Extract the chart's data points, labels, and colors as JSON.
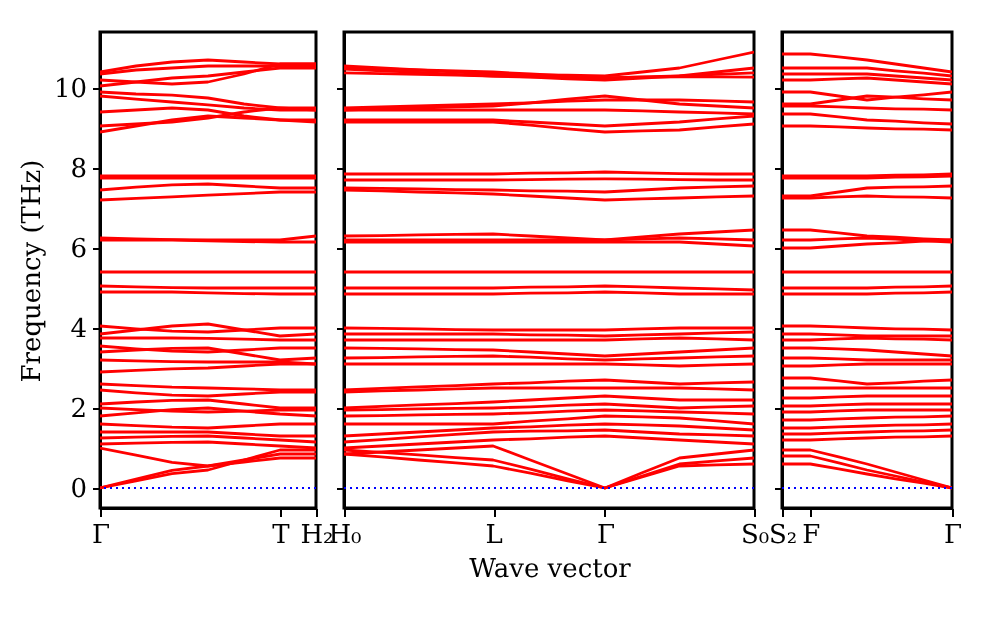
{
  "chart_data": [
    {
      "type": "line",
      "ylabel": "Frequency (THz)",
      "categories": [
        "Γ",
        null,
        null,
        null,
        null,
        "T",
        "H₂"
      ],
      "ylim": [
        -0.5,
        11.4
      ],
      "yticks": [
        0,
        2,
        4,
        6,
        8,
        10
      ],
      "ref_lines": [
        {
          "axis": "y",
          "value": 0,
          "color": "#0000ff",
          "line_style": "dotted"
        }
      ],
      "series": [
        {
          "color": "#ff0000",
          "values": [
            10.4,
            10.55,
            10.65,
            10.7,
            10.65,
            10.6,
            10.6
          ]
        },
        {
          "color": "#ff0000",
          "values": [
            10.35,
            10.45,
            10.5,
            10.55,
            10.55,
            10.55,
            10.55
          ]
        },
        {
          "color": "#ff0000",
          "values": [
            10.2,
            10.15,
            10.1,
            10.15,
            10.35,
            10.6,
            10.6
          ]
        },
        {
          "color": "#ff0000",
          "values": [
            10.05,
            10.15,
            10.25,
            10.3,
            10.4,
            10.5,
            10.5
          ]
        },
        {
          "color": "#ff0000",
          "values": [
            9.9,
            9.85,
            9.82,
            9.75,
            9.6,
            9.5,
            9.5
          ]
        },
        {
          "color": "#ff0000",
          "values": [
            9.8,
            9.72,
            9.65,
            9.58,
            9.5,
            9.45,
            9.45
          ]
        },
        {
          "color": "#ff0000",
          "values": [
            9.4,
            9.45,
            9.5,
            9.45,
            9.3,
            9.2,
            9.2
          ]
        },
        {
          "color": "#ff0000",
          "values": [
            9.05,
            9.1,
            9.15,
            9.25,
            9.4,
            9.5,
            9.45
          ]
        },
        {
          "color": "#ff0000",
          "values": [
            8.9,
            9.05,
            9.2,
            9.3,
            9.25,
            9.2,
            9.15
          ]
        },
        {
          "color": "#ff0000",
          "values": [
            7.8,
            7.8,
            7.8,
            7.8,
            7.8,
            7.8,
            7.8
          ]
        },
        {
          "color": "#ff0000",
          "values": [
            7.75,
            7.75,
            7.75,
            7.75,
            7.75,
            7.75,
            7.75
          ]
        },
        {
          "color": "#ff0000",
          "values": [
            7.45,
            7.52,
            7.58,
            7.6,
            7.55,
            7.5,
            7.5
          ]
        },
        {
          "color": "#ff0000",
          "values": [
            7.2,
            7.24,
            7.28,
            7.32,
            7.36,
            7.4,
            7.4
          ]
        },
        {
          "color": "#ff0000",
          "values": [
            6.25,
            6.23,
            6.21,
            6.2,
            6.2,
            6.2,
            6.3
          ]
        },
        {
          "color": "#ff0000",
          "values": [
            6.2,
            6.2,
            6.2,
            6.18,
            6.16,
            6.15,
            6.15
          ]
        },
        {
          "color": "#ff0000",
          "values": [
            5.4,
            5.4,
            5.4,
            5.4,
            5.4,
            5.4,
            5.4
          ]
        },
        {
          "color": "#ff0000",
          "values": [
            5.05,
            5.03,
            5.01,
            5.0,
            5.0,
            5.0,
            5.0
          ]
        },
        {
          "color": "#ff0000",
          "values": [
            4.9,
            4.9,
            4.9,
            4.88,
            4.86,
            4.85,
            4.85
          ]
        },
        {
          "color": "#ff0000",
          "values": [
            4.05,
            3.98,
            3.92,
            3.9,
            3.95,
            4.0,
            4.0
          ]
        },
        {
          "color": "#ff0000",
          "values": [
            3.85,
            3.95,
            4.05,
            4.1,
            3.95,
            3.8,
            3.85
          ]
        },
        {
          "color": "#ff0000",
          "values": [
            3.75,
            3.75,
            3.75,
            3.74,
            3.72,
            3.7,
            3.7
          ]
        },
        {
          "color": "#ff0000",
          "values": [
            3.55,
            3.48,
            3.42,
            3.4,
            3.45,
            3.5,
            3.5
          ]
        },
        {
          "color": "#ff0000",
          "values": [
            3.4,
            3.45,
            3.49,
            3.5,
            3.35,
            3.2,
            3.25
          ]
        },
        {
          "color": "#ff0000",
          "values": [
            3.2,
            3.18,
            3.16,
            3.15,
            3.15,
            3.15,
            3.1
          ]
        },
        {
          "color": "#ff0000",
          "values": [
            2.9,
            2.94,
            2.98,
            3.0,
            3.05,
            3.1,
            3.1
          ]
        },
        {
          "color": "#ff0000",
          "values": [
            2.6,
            2.56,
            2.52,
            2.5,
            2.48,
            2.45,
            2.45
          ]
        },
        {
          "color": "#ff0000",
          "values": [
            2.45,
            2.38,
            2.32,
            2.3,
            2.35,
            2.4,
            2.4
          ]
        },
        {
          "color": "#ff0000",
          "values": [
            2.1,
            2.15,
            2.19,
            2.2,
            2.1,
            2.0,
            2.0
          ]
        },
        {
          "color": "#ff0000",
          "values": [
            2.0,
            1.96,
            1.92,
            1.9,
            1.92,
            1.95,
            1.95
          ]
        },
        {
          "color": "#ff0000",
          "values": [
            1.8,
            1.88,
            1.96,
            2.0,
            1.92,
            1.85,
            1.8
          ]
        },
        {
          "color": "#ff0000",
          "values": [
            1.6,
            1.56,
            1.52,
            1.5,
            1.55,
            1.6,
            1.6
          ]
        },
        {
          "color": "#ff0000",
          "values": [
            1.4,
            1.4,
            1.4,
            1.4,
            1.35,
            1.3,
            1.3
          ]
        },
        {
          "color": "#ff0000",
          "values": [
            1.25,
            1.27,
            1.29,
            1.3,
            1.25,
            1.2,
            1.15
          ]
        },
        {
          "color": "#ff0000",
          "values": [
            1.1,
            1.12,
            1.14,
            1.15,
            1.1,
            1.05,
            1.0
          ]
        },
        {
          "color": "#ff0000",
          "values": [
            1.0,
            0.82,
            0.64,
            0.55,
            0.65,
            0.75,
            0.75
          ]
        },
        {
          "color": "#ff0000",
          "values": [
            0,
            0.18,
            0.36,
            0.45,
            0.7,
            0.95,
            0.95
          ]
        },
        {
          "color": "#ff0000",
          "values": [
            0,
            0.22,
            0.44,
            0.55,
            0.7,
            0.85,
            0.85
          ]
        }
      ]
    },
    {
      "type": "line",
      "xlabel": "Wave vector",
      "tick_labels": "x",
      "categories": [
        "H₀",
        null,
        null,
        null,
        "L",
        null,
        null,
        "Γ",
        null,
        null,
        null,
        "S₀"
      ],
      "ylim": [
        -0.5,
        11.4
      ],
      "yticks": [
        0,
        2,
        4,
        6,
        8,
        10
      ],
      "ref_lines": [
        {
          "axis": "y",
          "value": 0,
          "color": "#0000ff",
          "line_style": "dotted"
        }
      ],
      "series": [
        {
          "color": "#ff0000",
          "values": [
            10.55,
            10.5,
            10.45,
            10.4,
            10.35,
            10.33,
            10.32,
            10.3,
            10.4,
            10.5,
            10.7,
            10.9
          ]
        },
        {
          "color": "#ff0000",
          "values": [
            10.5,
            10.48,
            10.45,
            10.43,
            10.4,
            10.35,
            10.3,
            10.25,
            10.28,
            10.3,
            10.4,
            10.5
          ]
        },
        {
          "color": "#ff0000",
          "values": [
            10.47,
            10.43,
            10.39,
            10.34,
            10.3,
            10.27,
            10.23,
            10.2,
            10.25,
            10.3,
            10.34,
            10.38
          ]
        },
        {
          "color": "#ff0000",
          "values": [
            10.38,
            10.36,
            10.34,
            10.32,
            10.3,
            10.28,
            10.27,
            10.25,
            10.27,
            10.28,
            10.28,
            10.27
          ]
        },
        {
          "color": "#ff0000",
          "values": [
            9.5,
            9.53,
            9.55,
            9.58,
            9.6,
            9.63,
            9.67,
            9.7,
            9.7,
            9.7,
            9.68,
            9.65
          ]
        },
        {
          "color": "#ff0000",
          "values": [
            9.45,
            9.48,
            9.5,
            9.53,
            9.55,
            9.63,
            9.72,
            9.8,
            9.7,
            9.6,
            9.55,
            9.5
          ]
        },
        {
          "color": "#ff0000",
          "values": [
            9.45,
            9.45,
            9.45,
            9.45,
            9.45,
            9.45,
            9.45,
            9.45,
            9.43,
            9.4,
            9.38,
            9.35
          ]
        },
        {
          "color": "#ff0000",
          "values": [
            9.2,
            9.2,
            9.2,
            9.2,
            9.2,
            9.15,
            9.1,
            9.05,
            9.1,
            9.15,
            9.23,
            9.3
          ]
        },
        {
          "color": "#ff0000",
          "values": [
            9.15,
            9.15,
            9.15,
            9.15,
            9.15,
            9.07,
            8.98,
            8.9,
            8.93,
            8.95,
            9.03,
            9.1
          ]
        },
        {
          "color": "#ff0000",
          "values": [
            7.85,
            7.85,
            7.85,
            7.85,
            7.85,
            7.87,
            7.88,
            7.9,
            7.88,
            7.86,
            7.85,
            7.85
          ]
        },
        {
          "color": "#ff0000",
          "values": [
            7.7,
            7.7,
            7.7,
            7.7,
            7.7,
            7.71,
            7.72,
            7.73,
            7.72,
            7.71,
            7.7,
            7.7
          ]
        },
        {
          "color": "#ff0000",
          "values": [
            7.5,
            7.49,
            7.48,
            7.46,
            7.45,
            7.43,
            7.42,
            7.4,
            7.45,
            7.5,
            7.53,
            7.55
          ]
        },
        {
          "color": "#ff0000",
          "values": [
            7.45,
            7.43,
            7.4,
            7.38,
            7.35,
            7.3,
            7.25,
            7.2,
            7.23,
            7.25,
            7.28,
            7.3
          ]
        },
        {
          "color": "#ff0000",
          "values": [
            6.3,
            6.31,
            6.33,
            6.34,
            6.35,
            6.3,
            6.25,
            6.2,
            6.28,
            6.35,
            6.4,
            6.45
          ]
        },
        {
          "color": "#ff0000",
          "values": [
            6.2,
            6.2,
            6.2,
            6.2,
            6.2,
            6.2,
            6.2,
            6.2,
            6.23,
            6.25,
            6.23,
            6.2
          ]
        },
        {
          "color": "#ff0000",
          "values": [
            6.15,
            6.15,
            6.15,
            6.15,
            6.15,
            6.15,
            6.15,
            6.15,
            6.15,
            6.15,
            6.1,
            6.05
          ]
        },
        {
          "color": "#ff0000",
          "values": [
            5.4,
            5.4,
            5.4,
            5.4,
            5.4,
            5.4,
            5.4,
            5.4,
            5.4,
            5.4,
            5.4,
            5.4
          ]
        },
        {
          "color": "#ff0000",
          "values": [
            5.0,
            5.0,
            5.0,
            5.0,
            5.0,
            5.02,
            5.03,
            5.05,
            5.03,
            5.0,
            4.98,
            4.95
          ]
        },
        {
          "color": "#ff0000",
          "values": [
            4.85,
            4.85,
            4.85,
            4.85,
            4.85,
            4.87,
            4.88,
            4.9,
            4.88,
            4.85,
            4.85,
            4.85
          ]
        },
        {
          "color": "#ff0000",
          "values": [
            4.0,
            3.99,
            3.98,
            3.96,
            3.95,
            3.95,
            3.95,
            3.95,
            3.98,
            4.0,
            4.0,
            4.0
          ]
        },
        {
          "color": "#ff0000",
          "values": [
            3.85,
            3.85,
            3.85,
            3.85,
            3.85,
            3.83,
            3.82,
            3.8,
            3.83,
            3.85,
            3.88,
            3.9
          ]
        },
        {
          "color": "#ff0000",
          "values": [
            3.7,
            3.7,
            3.7,
            3.7,
            3.7,
            3.7,
            3.7,
            3.7,
            3.73,
            3.75,
            3.73,
            3.7
          ]
        },
        {
          "color": "#ff0000",
          "values": [
            3.5,
            3.49,
            3.48,
            3.46,
            3.45,
            3.4,
            3.35,
            3.3,
            3.35,
            3.4,
            3.45,
            3.5
          ]
        },
        {
          "color": "#ff0000",
          "values": [
            3.25,
            3.26,
            3.28,
            3.29,
            3.3,
            3.27,
            3.23,
            3.2,
            3.23,
            3.25,
            3.28,
            3.3
          ]
        },
        {
          "color": "#ff0000",
          "values": [
            3.1,
            3.1,
            3.1,
            3.1,
            3.1,
            3.1,
            3.1,
            3.1,
            3.08,
            3.05,
            3.08,
            3.1
          ]
        },
        {
          "color": "#ff0000",
          "values": [
            2.45,
            2.49,
            2.53,
            2.56,
            2.6,
            2.63,
            2.67,
            2.7,
            2.65,
            2.6,
            2.63,
            2.65
          ]
        },
        {
          "color": "#ff0000",
          "values": [
            2.4,
            2.43,
            2.45,
            2.48,
            2.5,
            2.5,
            2.5,
            2.5,
            2.5,
            2.5,
            2.48,
            2.45
          ]
        },
        {
          "color": "#ff0000",
          "values": [
            2.0,
            2.04,
            2.08,
            2.11,
            2.15,
            2.2,
            2.25,
            2.3,
            2.25,
            2.2,
            2.2,
            2.2
          ]
        },
        {
          "color": "#ff0000",
          "values": [
            1.95,
            1.96,
            1.98,
            1.99,
            2.0,
            2.03,
            2.07,
            2.1,
            2.05,
            2.0,
            2.03,
            2.05
          ]
        },
        {
          "color": "#ff0000",
          "values": [
            1.8,
            1.81,
            1.83,
            1.84,
            1.85,
            1.88,
            1.92,
            1.95,
            1.93,
            1.9,
            1.88,
            1.85
          ]
        },
        {
          "color": "#ff0000",
          "values": [
            1.6,
            1.6,
            1.6,
            1.6,
            1.6,
            1.67,
            1.73,
            1.8,
            1.78,
            1.75,
            1.68,
            1.6
          ]
        },
        {
          "color": "#ff0000",
          "values": [
            1.3,
            1.35,
            1.4,
            1.45,
            1.5,
            1.53,
            1.57,
            1.6,
            1.58,
            1.55,
            1.5,
            1.45
          ]
        },
        {
          "color": "#ff0000",
          "values": [
            1.15,
            1.21,
            1.28,
            1.34,
            1.4,
            1.42,
            1.43,
            1.45,
            1.4,
            1.35,
            1.33,
            1.3
          ]
        },
        {
          "color": "#ff0000",
          "values": [
            1.0,
            1.05,
            1.1,
            1.15,
            1.2,
            1.23,
            1.27,
            1.3,
            1.25,
            1.2,
            1.15,
            1.1
          ]
        },
        {
          "color": "#ff0000",
          "values": [
            0.85,
            0.9,
            0.95,
            1.0,
            1.05,
            0.7,
            0.35,
            0,
            0.38,
            0.75,
            0.85,
            0.95
          ]
        },
        {
          "color": "#ff0000",
          "values": [
            0.95,
            0.89,
            0.83,
            0.76,
            0.7,
            0.47,
            0.23,
            0,
            0.3,
            0.6,
            0.68,
            0.75
          ]
        },
        {
          "color": "#ff0000",
          "values": [
            0.85,
            0.78,
            0.7,
            0.63,
            0.55,
            0.37,
            0.18,
            0,
            0.28,
            0.55,
            0.58,
            0.6
          ]
        }
      ]
    },
    {
      "type": "line",
      "tick_labels": "x",
      "categories": [
        "S₂",
        "F",
        null,
        null,
        null,
        null,
        "Γ"
      ],
      "ylim": [
        -0.5,
        11.4
      ],
      "yticks": [
        0,
        2,
        4,
        6,
        8,
        10
      ],
      "ref_lines": [
        {
          "axis": "y",
          "value": 0,
          "color": "#0000ff",
          "line_style": "dotted"
        }
      ],
      "series": [
        {
          "color": "#ff0000",
          "values": [
            10.85,
            10.85,
            10.78,
            10.7,
            10.6,
            10.5,
            10.4
          ]
        },
        {
          "color": "#ff0000",
          "values": [
            10.5,
            10.5,
            10.5,
            10.5,
            10.43,
            10.37,
            10.3
          ]
        },
        {
          "color": "#ff0000",
          "values": [
            10.35,
            10.35,
            10.35,
            10.35,
            10.3,
            10.25,
            10.2
          ]
        },
        {
          "color": "#ff0000",
          "values": [
            10.2,
            10.2,
            10.23,
            10.25,
            10.2,
            10.15,
            10.1
          ]
        },
        {
          "color": "#ff0000",
          "values": [
            9.9,
            9.9,
            9.8,
            9.7,
            9.77,
            9.83,
            9.9
          ]
        },
        {
          "color": "#ff0000",
          "values": [
            9.6,
            9.6,
            9.7,
            9.8,
            9.77,
            9.73,
            9.7
          ]
        },
        {
          "color": "#ff0000",
          "values": [
            9.55,
            9.55,
            9.53,
            9.5,
            9.48,
            9.47,
            9.45
          ]
        },
        {
          "color": "#ff0000",
          "values": [
            9.35,
            9.35,
            9.28,
            9.2,
            9.17,
            9.13,
            9.1
          ]
        },
        {
          "color": "#ff0000",
          "values": [
            9.05,
            9.05,
            9.03,
            9.0,
            8.98,
            8.97,
            8.95
          ]
        },
        {
          "color": "#ff0000",
          "values": [
            7.8,
            7.8,
            7.8,
            7.8,
            7.82,
            7.83,
            7.85
          ]
        },
        {
          "color": "#ff0000",
          "values": [
            7.75,
            7.75,
            7.75,
            7.75,
            7.77,
            7.78,
            7.8
          ]
        },
        {
          "color": "#ff0000",
          "values": [
            7.3,
            7.3,
            7.4,
            7.5,
            7.52,
            7.53,
            7.55
          ]
        },
        {
          "color": "#ff0000",
          "values": [
            7.25,
            7.25,
            7.28,
            7.3,
            7.28,
            7.27,
            7.25
          ]
        },
        {
          "color": "#ff0000",
          "values": [
            6.45,
            6.45,
            6.38,
            6.3,
            6.27,
            6.23,
            6.2
          ]
        },
        {
          "color": "#ff0000",
          "values": [
            6.2,
            6.2,
            6.23,
            6.25,
            6.22,
            6.18,
            6.15
          ]
        },
        {
          "color": "#ff0000",
          "values": [
            6.0,
            6.0,
            6.05,
            6.1,
            6.13,
            6.17,
            6.2
          ]
        },
        {
          "color": "#ff0000",
          "values": [
            5.4,
            5.4,
            5.4,
            5.4,
            5.4,
            5.4,
            5.4
          ]
        },
        {
          "color": "#ff0000",
          "values": [
            5.0,
            5.0,
            5.0,
            5.0,
            5.02,
            5.03,
            5.05
          ]
        },
        {
          "color": "#ff0000",
          "values": [
            4.85,
            4.85,
            4.85,
            4.85,
            4.87,
            4.88,
            4.9
          ]
        },
        {
          "color": "#ff0000",
          "values": [
            4.05,
            4.05,
            4.03,
            4.0,
            3.98,
            3.97,
            3.95
          ]
        },
        {
          "color": "#ff0000",
          "values": [
            3.85,
            3.85,
            3.83,
            3.8,
            3.8,
            3.8,
            3.8
          ]
        },
        {
          "color": "#ff0000",
          "values": [
            3.7,
            3.7,
            3.73,
            3.75,
            3.73,
            3.72,
            3.7
          ]
        },
        {
          "color": "#ff0000",
          "values": [
            3.5,
            3.5,
            3.48,
            3.45,
            3.4,
            3.35,
            3.3
          ]
        },
        {
          "color": "#ff0000",
          "values": [
            3.25,
            3.25,
            3.23,
            3.2,
            3.2,
            3.2,
            3.2
          ]
        },
        {
          "color": "#ff0000",
          "values": [
            3.05,
            3.05,
            3.08,
            3.1,
            3.1,
            3.1,
            3.1
          ]
        },
        {
          "color": "#ff0000",
          "values": [
            2.75,
            2.75,
            2.68,
            2.6,
            2.63,
            2.67,
            2.7
          ]
        },
        {
          "color": "#ff0000",
          "values": [
            2.5,
            2.5,
            2.5,
            2.5,
            2.5,
            2.5,
            2.5
          ]
        },
        {
          "color": "#ff0000",
          "values": [
            2.25,
            2.25,
            2.28,
            2.3,
            2.3,
            2.3,
            2.3
          ]
        },
        {
          "color": "#ff0000",
          "values": [
            2.05,
            2.05,
            2.08,
            2.1,
            2.1,
            2.1,
            2.1
          ]
        },
        {
          "color": "#ff0000",
          "values": [
            1.9,
            1.9,
            1.93,
            1.95,
            1.95,
            1.95,
            1.95
          ]
        },
        {
          "color": "#ff0000",
          "values": [
            1.7,
            1.7,
            1.73,
            1.75,
            1.77,
            1.78,
            1.8
          ]
        },
        {
          "color": "#ff0000",
          "values": [
            1.5,
            1.5,
            1.53,
            1.55,
            1.57,
            1.58,
            1.6
          ]
        },
        {
          "color": "#ff0000",
          "values": [
            1.35,
            1.35,
            1.38,
            1.4,
            1.42,
            1.43,
            1.45
          ]
        },
        {
          "color": "#ff0000",
          "values": [
            1.2,
            1.2,
            1.23,
            1.25,
            1.27,
            1.28,
            1.3
          ]
        },
        {
          "color": "#ff0000",
          "values": [
            0.95,
            0.95,
            0.78,
            0.6,
            0.4,
            0.2,
            0
          ]
        },
        {
          "color": "#ff0000",
          "values": [
            0.8,
            0.8,
            0.63,
            0.45,
            0.3,
            0.15,
            0
          ]
        },
        {
          "color": "#ff0000",
          "values": [
            0.6,
            0.6,
            0.48,
            0.35,
            0.23,
            0.12,
            0
          ]
        }
      ]
    }
  ]
}
